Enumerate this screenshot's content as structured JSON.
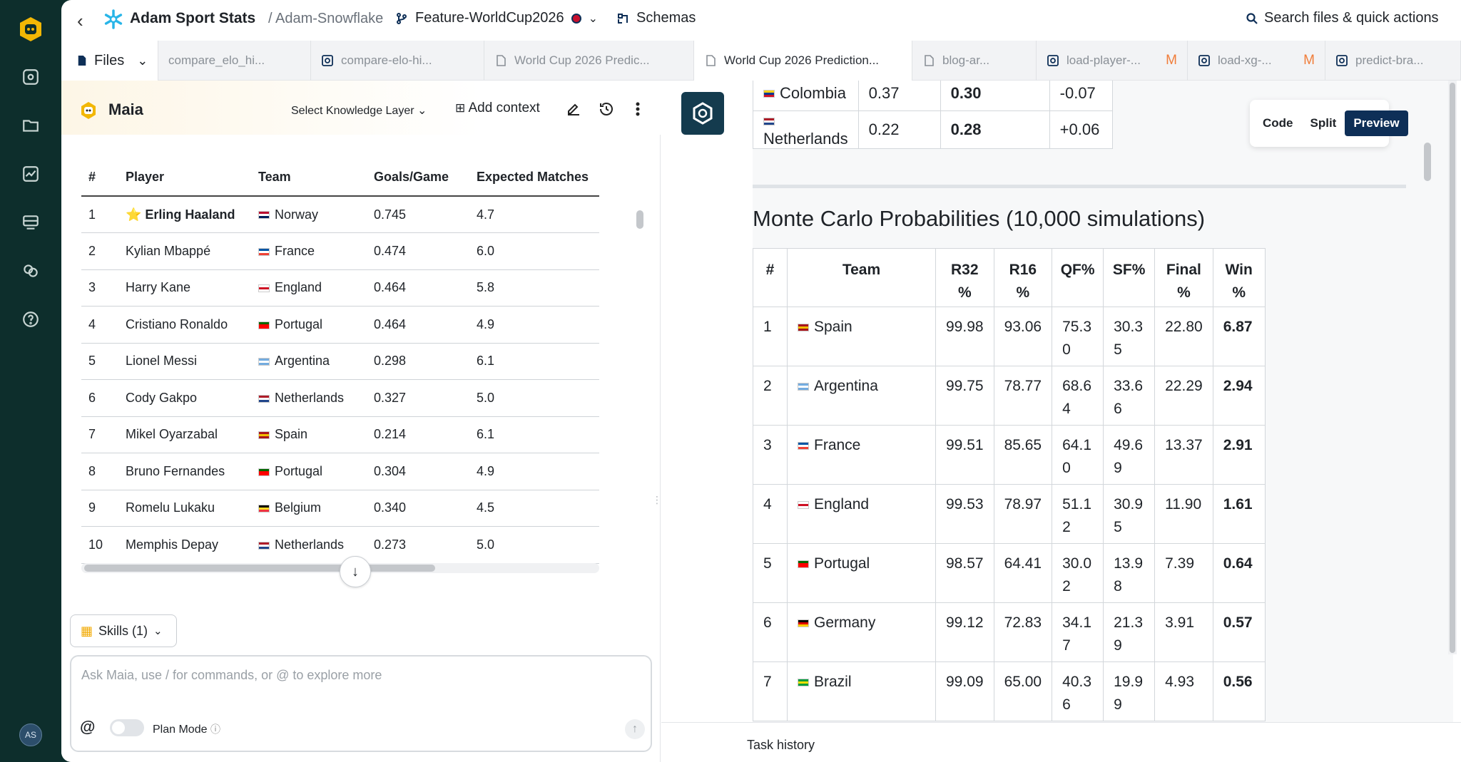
{
  "app": {
    "brand": "Adam Sport Stats",
    "crumb": "/ Adam-Snowflake",
    "branch": "Feature-WorldCup2026",
    "schemas": "Schemas",
    "search": "Search files & quick actions"
  },
  "rail": {
    "avatar": "AS",
    "icons": [
      "maia-logo-icon",
      "dashboard-icon",
      "folder-icon",
      "chart-icon",
      "database-icon",
      "link-icon",
      "help-icon"
    ]
  },
  "tabs": {
    "files": "Files",
    "items": [
      {
        "label": "compare_elo_hi...",
        "icon": "file-icon"
      },
      {
        "label": "compare-elo-hi...",
        "icon": "script-icon"
      },
      {
        "label": "World Cup 2026 Predic...",
        "icon": "document-icon"
      },
      {
        "label": "World Cup 2026 Prediction...",
        "icon": "document-icon"
      },
      {
        "label": "blog-ar...",
        "icon": "document-icon"
      },
      {
        "label": "load-player-...",
        "icon": "script-icon",
        "badge": "M"
      },
      {
        "label": "load-xg-...",
        "icon": "script-icon",
        "badge": "M"
      },
      {
        "label": "predict-bra...",
        "icon": "script-icon"
      }
    ]
  },
  "maia": {
    "title": "Maia",
    "knowledge_layer": "Select Knowledge Layer",
    "add_context": "Add context",
    "skills": "Skills (1)",
    "placeholder": "Ask Maia, use / for commands, or @ to explore more",
    "at": "@",
    "plan_mode": "Plan Mode"
  },
  "players": {
    "headers": [
      "#",
      "Player",
      "Team",
      "Goals/Game",
      "Expected Matches"
    ],
    "rows": [
      {
        "n": "1",
        "player": "⭐ Erling Haaland",
        "team": "Norway",
        "gpg": "0.745",
        "em": "4.7",
        "flag": [
          "#ba0c2f",
          "#fff",
          "#00205b"
        ]
      },
      {
        "n": "2",
        "player": "Kylian Mbappé",
        "team": "France",
        "gpg": "0.474",
        "em": "6.0",
        "flag": [
          "#0055a4",
          "#fff",
          "#ef4135"
        ]
      },
      {
        "n": "3",
        "player": "Harry Kane",
        "team": "England",
        "gpg": "0.464",
        "em": "5.8",
        "flag": [
          "#fff",
          "#ce1124",
          "#fff"
        ]
      },
      {
        "n": "4",
        "player": "Cristiano Ronaldo",
        "team": "Portugal",
        "gpg": "0.464",
        "em": "4.9",
        "flag": [
          "#006600",
          "#ff0000",
          "#ff0000"
        ]
      },
      {
        "n": "5",
        "player": "Lionel Messi",
        "team": "Argentina",
        "gpg": "0.298",
        "em": "6.1",
        "flag": [
          "#74acdf",
          "#fff",
          "#74acdf"
        ]
      },
      {
        "n": "6",
        "player": "Cody Gakpo",
        "team": "Netherlands",
        "gpg": "0.327",
        "em": "5.0",
        "flag": [
          "#ae1c28",
          "#fff",
          "#21468b"
        ]
      },
      {
        "n": "7",
        "player": "Mikel Oyarzabal",
        "team": "Spain",
        "gpg": "0.214",
        "em": "6.1",
        "flag": [
          "#aa151b",
          "#f1bf00",
          "#aa151b"
        ]
      },
      {
        "n": "8",
        "player": "Bruno Fernandes",
        "team": "Portugal",
        "gpg": "0.304",
        "em": "4.9",
        "flag": [
          "#006600",
          "#ff0000",
          "#ff0000"
        ]
      },
      {
        "n": "9",
        "player": "Romelu Lukaku",
        "team": "Belgium",
        "gpg": "0.340",
        "em": "4.5",
        "flag": [
          "#000",
          "#fdda24",
          "#ef3340"
        ]
      },
      {
        "n": "10",
        "player": "Memphis Depay",
        "team": "Netherlands",
        "gpg": "0.273",
        "em": "5.0",
        "flag": [
          "#ae1c28",
          "#fff",
          "#21468b"
        ]
      }
    ]
  },
  "elo_rows": [
    {
      "team": "Colombia",
      "a": "0.37",
      "b": "0.30",
      "c": "-0.07",
      "flag": [
        "#fcd116",
        "#003893",
        "#ce1126"
      ]
    },
    {
      "team": "Netherlands",
      "a": "0.22",
      "b": "0.28",
      "c": "+0.06",
      "flag": [
        "#ae1c28",
        "#fff",
        "#21468b"
      ]
    }
  ],
  "monte_carlo": {
    "title": "Monte Carlo Probabilities (10,000 simulations)",
    "headers": [
      "#",
      "Team",
      "R32\n%",
      "R16\n%",
      "QF%",
      "SF%",
      "Final\n%",
      "Win\n%"
    ],
    "rows": [
      {
        "n": "1",
        "team": "Spain",
        "r32": "99.98",
        "r16": "93.06",
        "qf": "75.3\n0",
        "sf": "30.3\n5",
        "final": "22.80",
        "win": "6.87",
        "flag": [
          "#aa151b",
          "#f1bf00",
          "#aa151b"
        ]
      },
      {
        "n": "2",
        "team": "Argentina",
        "r32": "99.75",
        "r16": "78.77",
        "qf": "68.6\n4",
        "sf": "33.6\n6",
        "final": "22.29",
        "win": "2.94",
        "flag": [
          "#74acdf",
          "#fff",
          "#74acdf"
        ]
      },
      {
        "n": "3",
        "team": "France",
        "r32": "99.51",
        "r16": "85.65",
        "qf": "64.1\n0",
        "sf": "49.6\n9",
        "final": "13.37",
        "win": "2.91",
        "flag": [
          "#0055a4",
          "#fff",
          "#ef4135"
        ]
      },
      {
        "n": "4",
        "team": "England",
        "r32": "99.53",
        "r16": "78.97",
        "qf": "51.1\n2",
        "sf": "30.9\n5",
        "final": "11.90",
        "win": "1.61",
        "flag": [
          "#fff",
          "#ce1124",
          "#fff"
        ]
      },
      {
        "n": "5",
        "team": "Portugal",
        "r32": "98.57",
        "r16": "64.41",
        "qf": "30.0\n2",
        "sf": "13.9\n8",
        "final": "7.39",
        "win": "0.64",
        "flag": [
          "#006600",
          "#ff0000",
          "#ff0000"
        ]
      },
      {
        "n": "6",
        "team": "Germany",
        "r32": "99.12",
        "r16": "72.83",
        "qf": "34.1\n7",
        "sf": "21.3\n9",
        "final": "3.91",
        "win": "0.57",
        "flag": [
          "#000",
          "#dd0000",
          "#ffce00"
        ]
      },
      {
        "n": "7",
        "team": "Brazil",
        "r32": "99.09",
        "r16": "65.00",
        "qf": "40.3\n6",
        "sf": "19.9\n9",
        "final": "4.93",
        "win": "0.56",
        "flag": [
          "#009c3b",
          "#ffdf00",
          "#009c3b"
        ]
      }
    ]
  },
  "view_toggle": {
    "code": "Code",
    "split": "Split",
    "preview": "Preview"
  },
  "task_history": "Task history"
}
